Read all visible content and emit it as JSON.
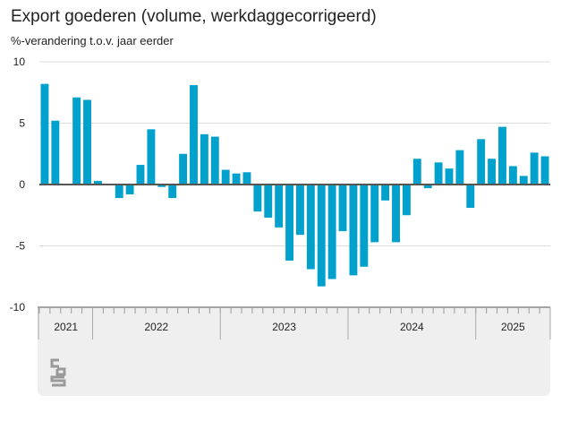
{
  "chart_data": {
    "type": "bar",
    "title": "Export goederen (volume, werkdaggecorrigeerd)",
    "ylabel": "%-verandering t.o.v. jaar eerder",
    "xlabel": "",
    "ylim": [
      -10,
      10
    ],
    "yticks": [
      "10",
      "5",
      "0",
      "-5",
      "-10"
    ],
    "ytick_values": [
      10,
      5,
      0,
      -5,
      -10
    ],
    "grid": true,
    "color": "#00a1cd",
    "years": [
      {
        "label": "2021",
        "months": 5
      },
      {
        "label": "2022",
        "months": 12
      },
      {
        "label": "2023",
        "months": 12
      },
      {
        "label": "2024",
        "months": 12
      },
      {
        "label": "2025",
        "months": 7
      }
    ],
    "values": [
      8.2,
      5.2,
      0,
      7.1,
      6.9,
      0.3,
      0,
      -1.1,
      -0.8,
      1.6,
      4.5,
      -0.2,
      -1.1,
      2.5,
      8.1,
      4.1,
      3.9,
      1.2,
      0.9,
      1.0,
      -2.2,
      -2.7,
      -3.5,
      -6.2,
      -4.1,
      -6.9,
      -8.3,
      -7.7,
      -3.8,
      -7.4,
      -6.7,
      -4.7,
      -1.3,
      -4.7,
      -2.5,
      2.1,
      -0.3,
      1.8,
      1.3,
      2.8,
      -1.9,
      3.7,
      2.1,
      4.7,
      1.5,
      0.7,
      2.6,
      2.3
    ]
  },
  "logo": "cbs"
}
